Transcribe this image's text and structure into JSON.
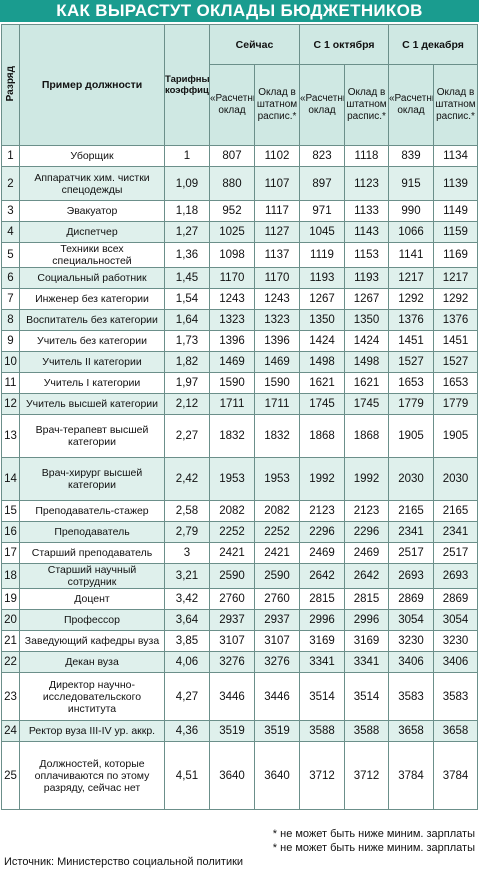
{
  "title": "КАК ВЫРАСТУТ ОКЛАДЫ БЮДЖЕТНИКОВ",
  "headers": {
    "rank": "Разряд",
    "position": "Пример должности",
    "coef": "Тарифные коэффициенты",
    "now": "Сейчас",
    "oct": "С 1 октября",
    "dec": "С 1 декабря",
    "calc": "«Расчетный» оклад",
    "staff": "Оклад в штатном распис.*"
  },
  "rows": [
    {
      "rank": "1",
      "position": "Уборщик",
      "coef": "1",
      "v": [
        "807",
        "1102",
        "823",
        "1118",
        "839",
        "1134"
      ]
    },
    {
      "rank": "2",
      "position": "Аппаратчик хим. чистки спецодежды",
      "coef": "1,09",
      "v": [
        "880",
        "1107",
        "897",
        "1123",
        "915",
        "1139"
      ]
    },
    {
      "rank": "3",
      "position": "Эвакуатор",
      "coef": "1,18",
      "v": [
        "952",
        "1117",
        "971",
        "1133",
        "990",
        "1149"
      ]
    },
    {
      "rank": "4",
      "position": "Диспетчер",
      "coef": "1,27",
      "v": [
        "1025",
        "1127",
        "1045",
        "1143",
        "1066",
        "1159"
      ]
    },
    {
      "rank": "5",
      "position": "Техники всех специальностей",
      "coef": "1,36",
      "v": [
        "1098",
        "1137",
        "1119",
        "1153",
        "1141",
        "1169"
      ]
    },
    {
      "rank": "6",
      "position": "Социальный работник",
      "coef": "1,45",
      "v": [
        "1170",
        "1170",
        "1193",
        "1193",
        "1217",
        "1217"
      ]
    },
    {
      "rank": "7",
      "position": "Инженер без категории",
      "coef": "1,54",
      "v": [
        "1243",
        "1243",
        "1267",
        "1267",
        "1292",
        "1292"
      ]
    },
    {
      "rank": "8",
      "position": "Воспитатель без категории",
      "coef": "1,64",
      "v": [
        "1323",
        "1323",
        "1350",
        "1350",
        "1376",
        "1376"
      ]
    },
    {
      "rank": "9",
      "position": "Учитель без категории",
      "coef": "1,73",
      "v": [
        "1396",
        "1396",
        "1424",
        "1424",
        "1451",
        "1451"
      ]
    },
    {
      "rank": "10",
      "position": "Учитель II категории",
      "coef": "1,82",
      "v": [
        "1469",
        "1469",
        "1498",
        "1498",
        "1527",
        "1527"
      ]
    },
    {
      "rank": "11",
      "position": "Учитель I категории",
      "coef": "1,97",
      "v": [
        "1590",
        "1590",
        "1621",
        "1621",
        "1653",
        "1653"
      ]
    },
    {
      "rank": "12",
      "position": "Учитель высшей категории",
      "coef": "2,12",
      "v": [
        "1711",
        "1711",
        "1745",
        "1745",
        "1779",
        "1779"
      ]
    },
    {
      "rank": "13",
      "position": "Врач-терапевт высшей категории",
      "coef": "2,27",
      "v": [
        "1832",
        "1832",
        "1868",
        "1868",
        "1905",
        "1905"
      ]
    },
    {
      "rank": "14",
      "position": "Врач-хирург высшей категории",
      "coef": "2,42",
      "v": [
        "1953",
        "1953",
        "1992",
        "1992",
        "2030",
        "2030"
      ]
    },
    {
      "rank": "15",
      "position": "Преподаватель-стажер",
      "coef": "2,58",
      "v": [
        "2082",
        "2082",
        "2123",
        "2123",
        "2165",
        "2165"
      ]
    },
    {
      "rank": "16",
      "position": "Преподаватель",
      "coef": "2,79",
      "v": [
        "2252",
        "2252",
        "2296",
        "2296",
        "2341",
        "2341"
      ]
    },
    {
      "rank": "17",
      "position": "Старший преподаватель",
      "coef": "3",
      "v": [
        "2421",
        "2421",
        "2469",
        "2469",
        "2517",
        "2517"
      ]
    },
    {
      "rank": "18",
      "position": "Старший научный сотрудник",
      "coef": "3,21",
      "v": [
        "2590",
        "2590",
        "2642",
        "2642",
        "2693",
        "2693"
      ]
    },
    {
      "rank": "19",
      "position": "Доцент",
      "coef": "3,42",
      "v": [
        "2760",
        "2760",
        "2815",
        "2815",
        "2869",
        "2869"
      ]
    },
    {
      "rank": "20",
      "position": "Профессор",
      "coef": "3,64",
      "v": [
        "2937",
        "2937",
        "2996",
        "2996",
        "3054",
        "3054"
      ]
    },
    {
      "rank": "21",
      "position": "Заведующий кафедры вуза",
      "coef": "3,85",
      "v": [
        "3107",
        "3107",
        "3169",
        "3169",
        "3230",
        "3230"
      ]
    },
    {
      "rank": "22",
      "position": "Декан вуза",
      "coef": "4,06",
      "v": [
        "3276",
        "3276",
        "3341",
        "3341",
        "3406",
        "3406"
      ]
    },
    {
      "rank": "23",
      "position": "Директор научно-исследовательского института",
      "coef": "4,27",
      "v": [
        "3446",
        "3446",
        "3514",
        "3514",
        "3583",
        "3583"
      ]
    },
    {
      "rank": "24",
      "position": "Ректор вуза III-IV ур. аккр.",
      "coef": "4,36",
      "v": [
        "3519",
        "3519",
        "3588",
        "3588",
        "3658",
        "3658"
      ]
    },
    {
      "rank": "25",
      "position": "Должностей, которые оплачиваются по этому разряду, сейчас нет",
      "coef": "4,51",
      "v": [
        "3640",
        "3640",
        "3712",
        "3712",
        "3784",
        "3784"
      ]
    }
  ],
  "notes": [
    "* не может быть ниже миним. зарплаты",
    "* не может быть ниже миним. зарплаты"
  ],
  "source": "Источник: Министерство социальной политики",
  "colors": {
    "title_bg": "#1a9c8f",
    "header_bg": "#cfe8e3",
    "stripe_bg": "#dff0ec",
    "border": "#6b8f8a"
  }
}
